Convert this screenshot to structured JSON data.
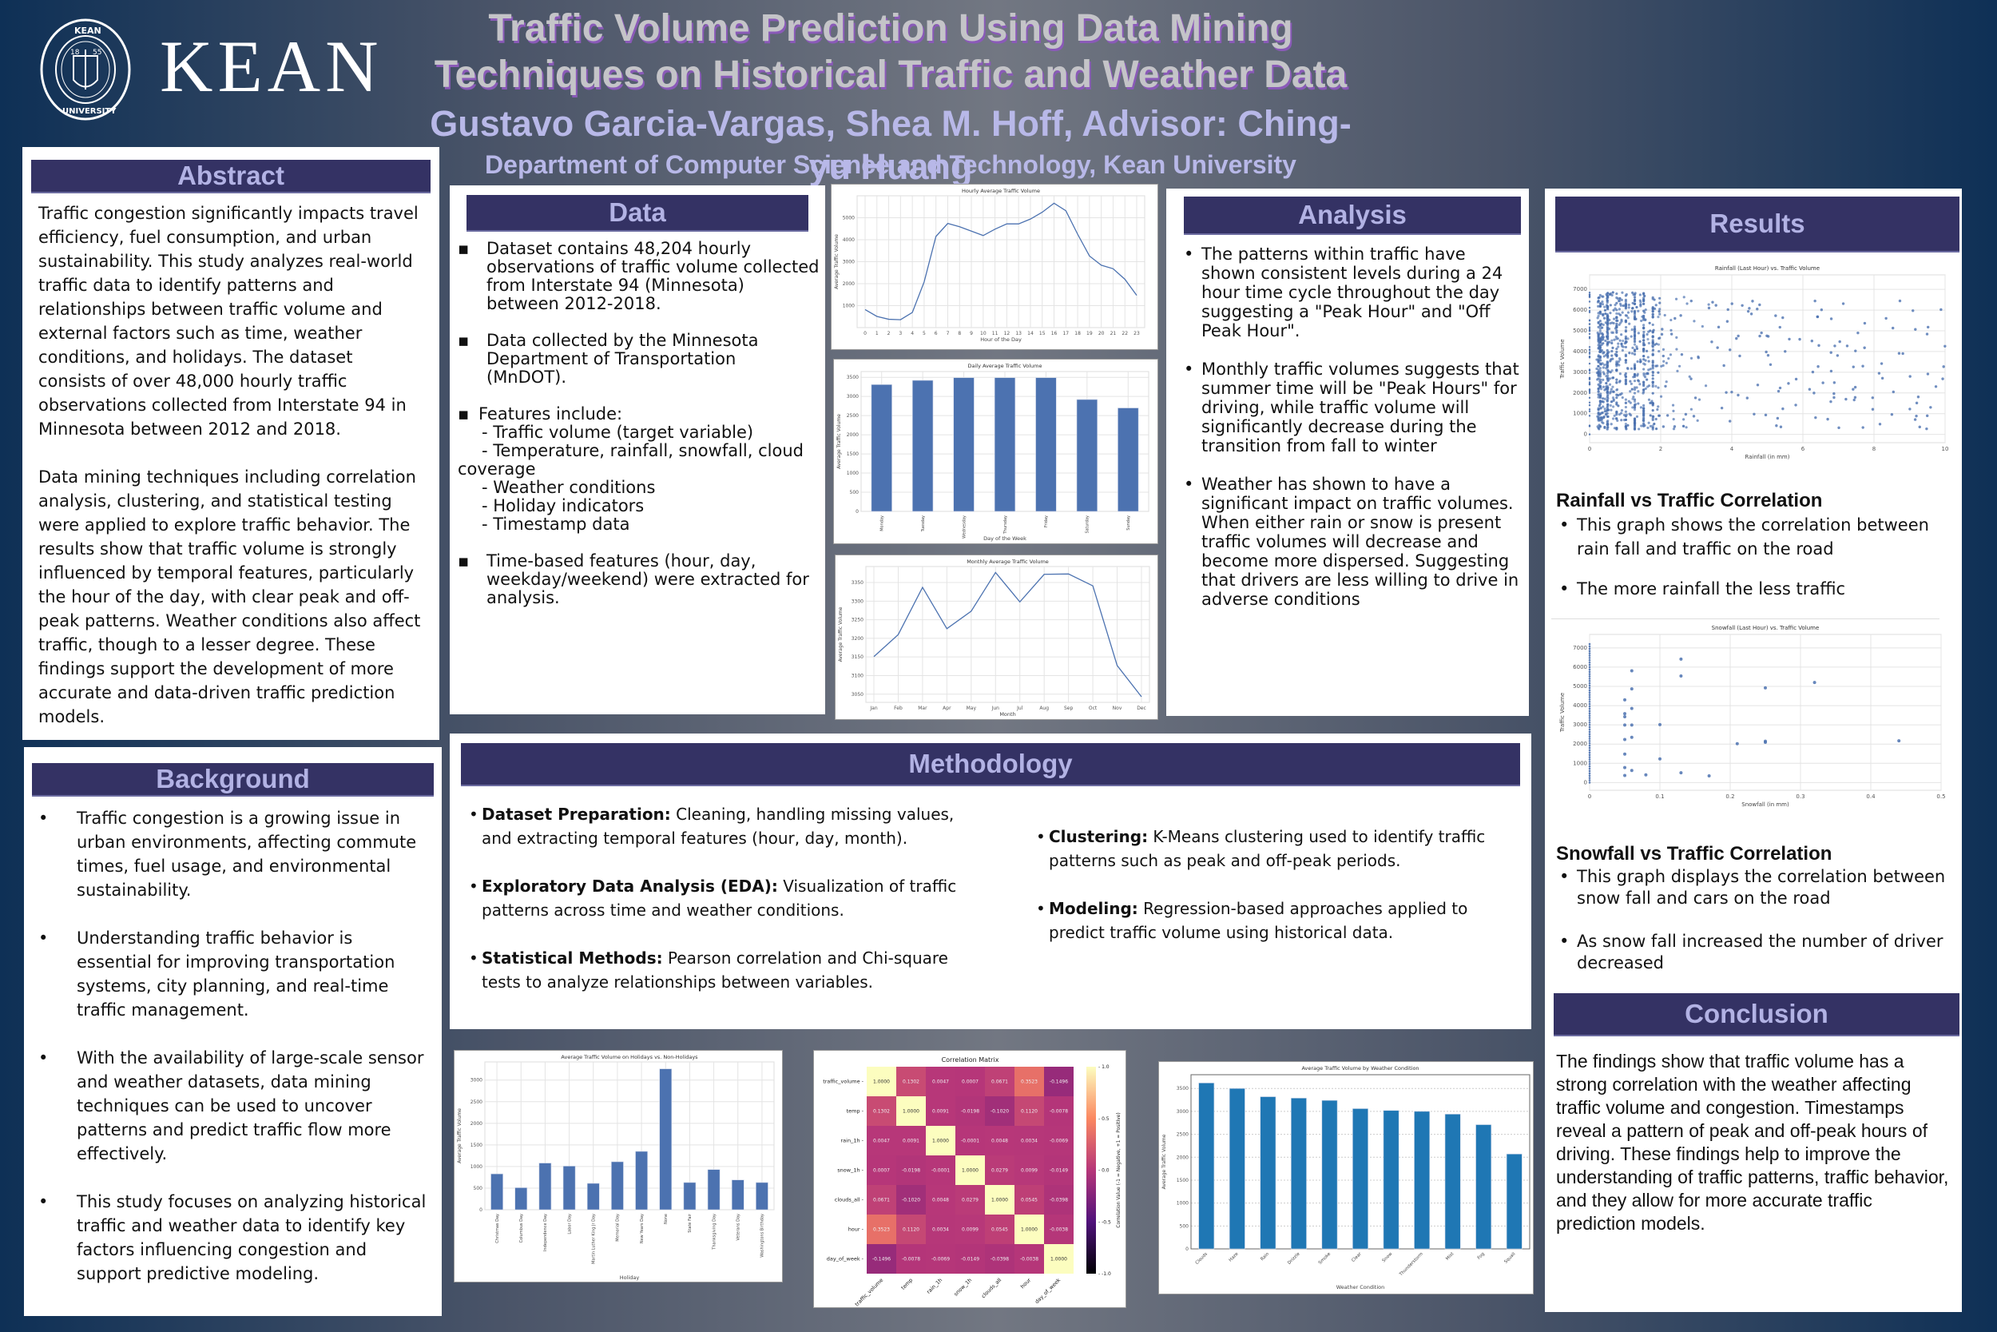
{
  "header": {
    "logo_text": "KEAN",
    "seal_text_top": "KEAN",
    "seal_text_bottom": "UNIVERSITY",
    "seal_year_left": "18",
    "seal_year_right": "55",
    "title_line1": "Traffic Volume Prediction Using Data Mining",
    "title_line2": "Techniques on Historical Traffic and Weather Data",
    "authors": "Gustavo Garcia-Vargas, Shea M. Hoff, Advisor: Ching-yu Huang",
    "department": "Department of Computer Science and Technology, Kean University"
  },
  "abstract": {
    "heading": "Abstract",
    "para1": "Traffic congestion significantly impacts travel efficiency, fuel consumption, and urban sustainability. This study analyzes real-world traffic data to identify patterns and relationships between traffic volume and external factors such as time, weather conditions, and holidays. The dataset consists of over 48,000 hourly traffic observations collected from Interstate 94 in Minnesota between 2012 and 2018.",
    "para2": "Data mining techniques including correlation analysis, clustering, and statistical testing were applied to explore traffic behavior. The results show that traffic volume is strongly influenced by temporal features, particularly the hour of the day, with clear peak and off-peak patterns. Weather conditions also affect traffic, though to a lesser degree. These findings support the development of more accurate and data-driven traffic prediction models."
  },
  "background": {
    "heading": "Background",
    "items": [
      "Traffic congestion is a growing issue in urban environments, affecting commute times, fuel usage, and environmental sustainability.",
      "Understanding traffic behavior is essential for improving transportation systems, city planning, and real-time traffic management.",
      "With the availability of large-scale sensor and weather datasets, data mining techniques can be used to uncover patterns and predict traffic flow more effectively.",
      "This study focuses on analyzing historical traffic and weather data to identify key factors influencing congestion and support predictive modeling."
    ]
  },
  "data_section": {
    "heading": "Data",
    "item1": "Dataset contains 48,204 hourly observations of traffic volume collected from Interstate 94 (Minnesota) between 2012-2018.",
    "item2": "Data collected by the Minnesota Department of Transportation (MnDOT).",
    "item3_title": "Features include:",
    "features": [
      "- Traffic volume (target variable)",
      "- Temperature, rainfall, snowfall, cloud coverage",
      "- Weather conditions",
      "- Holiday indicators",
      "- Timestamp data"
    ],
    "item4": "Time-based features (hour, day, weekday/weekend) were extracted for analysis."
  },
  "analysis": {
    "heading": "Analysis",
    "items": [
      "The patterns within traffic have shown consistent levels during a 24 hour time cycle throughout the day suggesting a \"Peak Hour\" and \"Off Peak Hour\".",
      "Monthly traffic volumes suggests that summer time will be \"Peak Hours\" for driving, while traffic volume will significantly decrease during the transition from fall to winter",
      "Weather has shown to have a significant impact on traffic volumes. When either rain or snow is present traffic volumes will decrease and become more dispersed. Suggesting that drivers are less willing to drive in adverse conditions"
    ]
  },
  "methodology": {
    "heading": "Methodology",
    "left": [
      {
        "label": "Dataset Preparation:",
        "text": " Cleaning, handling missing values, and extracting temporal features (hour, day, month)."
      },
      {
        "label": "Exploratory Data Analysis (EDA):",
        "text": " Visualization of traffic patterns across time and weather conditions."
      },
      {
        "label": "Statistical Methods:",
        "text": " Pearson correlation and Chi-square tests to analyze relationships between variables."
      }
    ],
    "right": [
      {
        "label": "Clustering:",
        "text": " K-Means clustering used to identify traffic patterns such as peak and off-peak periods."
      },
      {
        "label": "Modeling:",
        "text": " Regression-based approaches applied to predict traffic volume using historical data."
      }
    ]
  },
  "results": {
    "heading": "Results",
    "rain_title": "Rainfall vs Traffic Correlation",
    "rain_items": [
      "This graph shows the correlation between rain fall and traffic on the road",
      "The more rainfall the less traffic"
    ],
    "snow_title": "Snowfall vs Traffic Correlation",
    "snow_items": [
      "This graph displays the correlation between snow fall and cars on the road",
      "As snow fall increased the number of driver decreased"
    ]
  },
  "conclusion": {
    "heading": "Conclusion",
    "text": "The findings show that traffic volume has a strong correlation with the weather affecting traffic volume and congestion. Timestamps reveal a pattern of peak and off-peak hours of driving. These findings help to improve the understanding of traffic patterns, traffic behavior, and they allow for more accurate traffic prediction models."
  },
  "colors": {
    "header_bg": "#343264",
    "header_text": "#b2b2e4",
    "bar_blue": "#4c72b0",
    "bar_blue_weather": "#1f77b4"
  },
  "chart_data": [
    {
      "id": "hourly",
      "type": "line",
      "title": "Hourly Average Traffic Volume",
      "xlabel": "Hour of the Day",
      "ylabel": "Average Traffic Volume",
      "x": [
        0,
        1,
        2,
        3,
        4,
        5,
        6,
        7,
        8,
        9,
        10,
        11,
        12,
        13,
        14,
        15,
        16,
        17,
        18,
        19,
        20,
        21,
        22,
        23
      ],
      "values": [
        820,
        510,
        380,
        360,
        690,
        2080,
        4150,
        4740,
        4590,
        4390,
        4190,
        4480,
        4720,
        4720,
        4940,
        5250,
        5660,
        5320,
        4250,
        3260,
        2840,
        2680,
        2200,
        1470
      ],
      "yticks": [
        1000,
        2000,
        3000,
        4000,
        5000
      ],
      "ylim": [
        0,
        6000
      ]
    },
    {
      "id": "daily",
      "type": "bar",
      "title": "Daily Average Traffic Volume",
      "xlabel": "Day of the Week",
      "ylabel": "Average Traffic Volume",
      "categories": [
        "Monday",
        "Tuesday",
        "Wednesday",
        "Thursday",
        "Friday",
        "Saturday",
        "Sunday"
      ],
      "values": [
        3310,
        3420,
        3490,
        3490,
        3490,
        2920,
        2700
      ],
      "yticks": [
        0,
        500,
        1000,
        1500,
        2000,
        2500,
        3000,
        3500
      ],
      "ylim": [
        0,
        3650
      ]
    },
    {
      "id": "monthly",
      "type": "line",
      "title": "Monthly Average Traffic Volume",
      "xlabel": "Month",
      "ylabel": "Average Traffic Volume",
      "categories": [
        "Jan",
        "Feb",
        "Mar",
        "Apr",
        "May",
        "Jun",
        "Jul",
        "Aug",
        "Sep",
        "Oct",
        "Nov",
        "Dec"
      ],
      "values": [
        3151,
        3210,
        3337,
        3226,
        3273,
        3377,
        3298,
        3372,
        3373,
        3341,
        3127,
        3043
      ],
      "yticks": [
        3050,
        3100,
        3150,
        3200,
        3250,
        3300,
        3350
      ],
      "ylim": [
        3028,
        3393
      ]
    },
    {
      "id": "rainfall",
      "type": "scatter",
      "title": "Rainfall (Last Hour) vs. Traffic Volume",
      "xlabel": "Rainfall (in mm)",
      "ylabel": "Traffic Volume",
      "xticks": [
        0,
        2,
        4,
        6,
        8,
        10
      ],
      "yticks": [
        0,
        1000,
        2000,
        3000,
        4000,
        5000,
        6000,
        7000
      ],
      "xlim": [
        0,
        10
      ],
      "ylim": [
        -400,
        7700
      ]
    },
    {
      "id": "snowfall",
      "type": "scatter",
      "title": "Snowfall (Last Hour) vs. Traffic Volume",
      "xlabel": "Snowfall (in mm)",
      "ylabel": "Traffic Volume",
      "xticks": [
        0.0,
        0.1,
        0.2,
        0.3,
        0.4,
        0.5
      ],
      "yticks": [
        0,
        1000,
        2000,
        3000,
        4000,
        5000,
        6000,
        7000
      ],
      "xlim": [
        0,
        0.5
      ],
      "ylim": [
        -400,
        7700
      ],
      "points": [
        [
          0.05,
          4300
        ],
        [
          0.05,
          3580
        ],
        [
          0.05,
          3420
        ],
        [
          0.05,
          2990
        ],
        [
          0.05,
          2240
        ],
        [
          0.05,
          1480
        ],
        [
          0.05,
          780
        ],
        [
          0.05,
          370
        ],
        [
          0.06,
          5810
        ],
        [
          0.06,
          4870
        ],
        [
          0.06,
          3850
        ],
        [
          0.06,
          2990
        ],
        [
          0.06,
          2350
        ],
        [
          0.06,
          630
        ],
        [
          0.08,
          400
        ],
        [
          0.1,
          3010
        ],
        [
          0.1,
          1230
        ],
        [
          0.13,
          6420
        ],
        [
          0.13,
          5540
        ],
        [
          0.13,
          510
        ],
        [
          0.17,
          350
        ],
        [
          0.21,
          2020
        ],
        [
          0.25,
          4920
        ],
        [
          0.25,
          2150
        ],
        [
          0.25,
          2090
        ],
        [
          0.32,
          5200
        ],
        [
          0.44,
          2170
        ]
      ]
    },
    {
      "id": "holidays",
      "type": "bar",
      "title": "Average Traffic Volume on Holidays vs. Non-Holidays",
      "xlabel": "Holiday",
      "ylabel": "Average Traffic Volume",
      "categories": [
        "Christmas Day",
        "Columbus Day",
        "Independence Day",
        "Labor Day",
        "Martin Luther King Jr Day",
        "Memorial Day",
        "New Years Day",
        "None",
        "State Fair",
        "Thanksgiving Day",
        "Veterans Day",
        "Washingtons Birthday"
      ],
      "values": [
        830,
        510,
        1080,
        1010,
        610,
        1110,
        1350,
        3260,
        630,
        930,
        690,
        630
      ],
      "yticks": [
        0,
        500,
        1000,
        1500,
        2000,
        2500,
        3000
      ],
      "ylim": [
        0,
        3420
      ]
    },
    {
      "id": "correlation",
      "type": "heatmap",
      "title": "Correlation Matrix",
      "labels": [
        "traffic_volume",
        "temp",
        "rain_1h",
        "snow_1h",
        "clouds_all",
        "hour",
        "day_of_week"
      ],
      "matrix": [
        [
          1.0,
          0.1302,
          0.0047,
          0.0007,
          0.0671,
          0.3523,
          -0.1496
        ],
        [
          0.1302,
          1.0,
          0.0091,
          -0.0198,
          -0.102,
          0.112,
          -0.0078
        ],
        [
          0.0047,
          0.0091,
          1.0,
          -0.0001,
          0.0048,
          0.0034,
          -0.0069
        ],
        [
          0.0007,
          -0.0198,
          -0.0001,
          1.0,
          0.0279,
          0.0099,
          -0.0149
        ],
        [
          0.0671,
          -0.102,
          0.0048,
          0.0279,
          1.0,
          0.0545,
          -0.0398
        ],
        [
          0.3523,
          0.112,
          0.0034,
          0.0099,
          0.0545,
          1.0,
          -0.0038
        ],
        [
          -0.1496,
          -0.0078,
          -0.0069,
          -0.0149,
          -0.0398,
          -0.0038,
          1.0
        ]
      ],
      "colorbar_label": "Correlation Value (-1 = Negative, +1 = Positive)",
      "colorbar_ticks": [
        1.0,
        0.5,
        0.0,
        -0.5,
        -1.0
      ]
    },
    {
      "id": "weather",
      "type": "bar",
      "title": "Average Traffic Volume by Weather Condition",
      "xlabel": "Weather Condition",
      "ylabel": "Average Traffic Volume",
      "categories": [
        "Clouds",
        "Haze",
        "Rain",
        "Drizzle",
        "Smoke",
        "Clear",
        "Snow",
        "Thunderstorm",
        "Mist",
        "Fog",
        "Squall"
      ],
      "values": [
        3620,
        3500,
        3320,
        3290,
        3240,
        3060,
        3020,
        3000,
        2940,
        2710,
        2070
      ],
      "yticks": [
        0,
        500,
        1000,
        1500,
        2000,
        2500,
        3000,
        3500
      ],
      "ylim": [
        0,
        3800
      ]
    }
  ]
}
